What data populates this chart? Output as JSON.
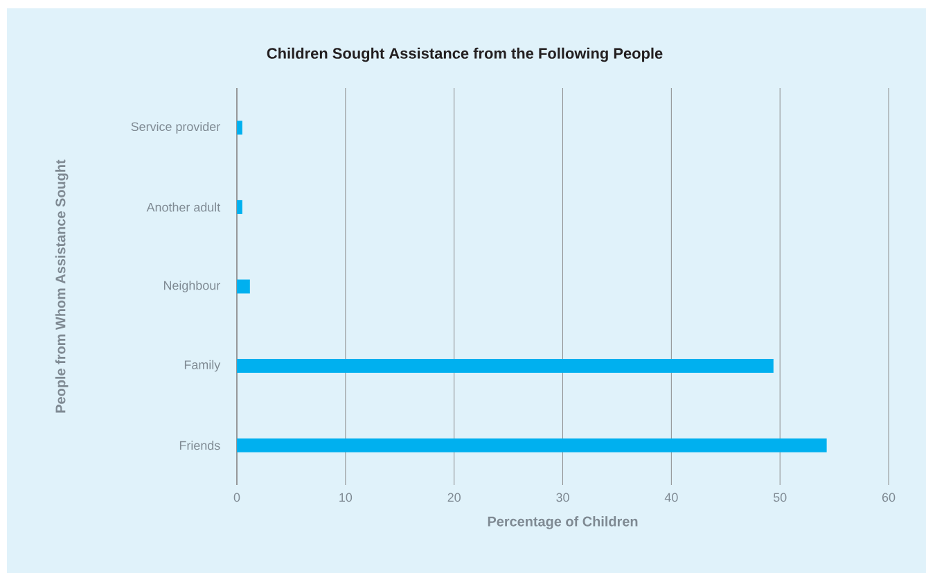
{
  "chart_data": {
    "type": "bar",
    "orientation": "horizontal",
    "title": "Children Sought Assistance from the Following People",
    "xlabel": "Percentage  of Children",
    "ylabel": "People from Whom Assistance Sought",
    "categories": [
      "Service provider",
      "Another adult",
      "Neighbour",
      "Family",
      "Friends"
    ],
    "values": [
      0.5,
      0.5,
      1.2,
      49.4,
      54.3
    ],
    "color": "#00b0ef",
    "xlim": [
      0,
      60
    ],
    "xticks": [
      0,
      10,
      20,
      30,
      40,
      50,
      60
    ],
    "grid": "x"
  }
}
